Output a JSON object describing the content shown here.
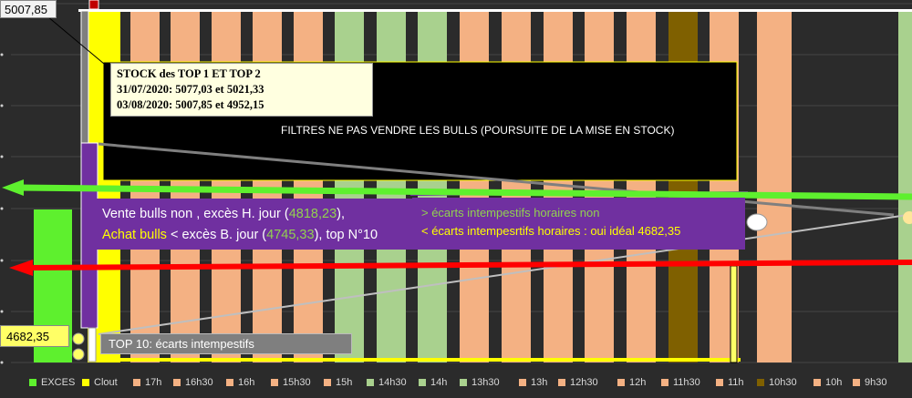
{
  "chart_data": {
    "type": "bar",
    "categories": [
      "EXCES",
      "Clout",
      "17h",
      "16h30",
      "16h",
      "15h30",
      "15h",
      "14h30",
      "14h",
      "13h30",
      "13h",
      "12h30",
      "12h",
      "11h30",
      "11h",
      "10h30",
      "10h",
      "9h30"
    ],
    "legend": [
      {
        "name": "EXCES",
        "color": "#5ef02e"
      },
      {
        "name": "Clout",
        "color": "#ffff00"
      },
      {
        "name": "17h",
        "color": "#f4b183"
      },
      {
        "name": "16h30",
        "color": "#f4b183"
      },
      {
        "name": "16h",
        "color": "#f4b183"
      },
      {
        "name": "15h30",
        "color": "#f4b183"
      },
      {
        "name": "15h",
        "color": "#f4b183"
      },
      {
        "name": "14h30",
        "color": "#a9d18e"
      },
      {
        "name": "14h",
        "color": "#a9d18e"
      },
      {
        "name": "13h30",
        "color": "#a9d18e"
      },
      {
        "name": "13h",
        "color": "#f4b183"
      },
      {
        "name": "12h30",
        "color": "#f4b183"
      },
      {
        "name": "12h",
        "color": "#f4b183"
      },
      {
        "name": "11h30",
        "color": "#f4b183"
      },
      {
        "name": "11h",
        "color": "#f4b183"
      },
      {
        "name": "10h30",
        "color": "#7f6000"
      },
      {
        "name": "10h",
        "color": "#f4b183"
      },
      {
        "name": "9h30",
        "color": "#f4b183"
      }
    ],
    "legend_position": "bottom",
    "levels": {
      "top": 5007.85,
      "bottom": 4682.35
    },
    "value_labels": {
      "top": "5007,85",
      "bottom": "4682,35"
    },
    "annotations": {
      "stock": {
        "line1": "STOCK des TOP 1 ET TOP 2",
        "line2": "31/07/2020: 5077,03  et 5021,33",
        "line3": "03/08/2020: 5007,85 et 4952,15"
      },
      "filter": "FILTRES NE PAS VENDRE LES BULLS (POURSUITE DE LA MISE EN  STOCK)",
      "vente": {
        "a": "Vente  bulls non",
        "b": " , excès H. jour (",
        "c": "4818,23",
        "d": "),",
        "e": "Achat bulls",
        "f": "  < excès B. jour (",
        "g": "4745,33",
        "h": "), top N°10"
      },
      "ecarts": {
        "line1": "> écarts intempestifs horaires  non",
        "line2": "< écarts intempesrtifs horaires : oui idéal 4682,35"
      },
      "top10": "TOP 10: écarts intempestifs"
    },
    "grid": true
  },
  "colors": {
    "background": "#2b2b2b",
    "salmon": "#f4b183",
    "light_green": "#a9d18e",
    "dark_olive": "#7f6000",
    "exces_green": "#5ef02e",
    "clout_yellow": "#ffff00",
    "purple": "#7030a0",
    "red_arrow": "#ff0000"
  }
}
